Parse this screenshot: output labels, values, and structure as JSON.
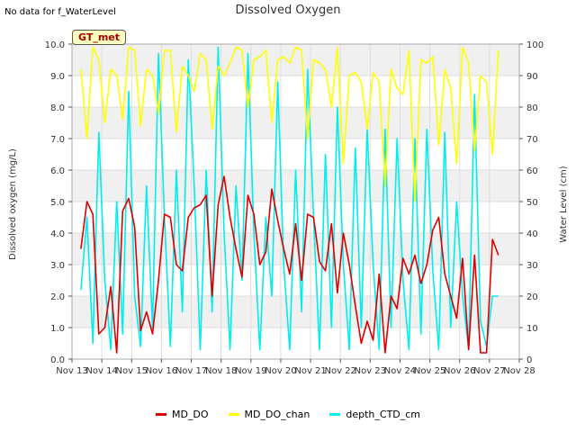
{
  "note": "No data for f_WaterLevel",
  "site_label": "GT_met",
  "chart_data": {
    "type": "line",
    "title": "Dissolved Oxygen",
    "ylabel": "Dissolved oxygen (mg/L)",
    "y2label": "Water Level (cm)",
    "ylim": [
      0,
      10
    ],
    "y2lim": [
      0,
      100
    ],
    "yticks": [
      "0.0",
      "1.0",
      "2.0",
      "3.0",
      "4.0",
      "5.0",
      "6.0",
      "7.0",
      "8.0",
      "9.0",
      "10.0"
    ],
    "y2ticks": [
      "0",
      "10",
      "20",
      "30",
      "40",
      "50",
      "60",
      "70",
      "80",
      "90",
      "100"
    ],
    "xlim": [
      13,
      28
    ],
    "xticks": [
      "Nov 13",
      "Nov 14",
      "Nov 15",
      "Nov 16",
      "Nov 17",
      "Nov 18",
      "Nov 19",
      "Nov 20",
      "Nov 21",
      "Nov 22",
      "Nov 23",
      "Nov 24",
      "Nov 25",
      "Nov 26",
      "Nov 27",
      "Nov 28"
    ],
    "grid": true,
    "legend_position": "bottom",
    "series": [
      {
        "name": "MD_DO",
        "color": "#dd0000",
        "axis": "left",
        "x": [
          13.3,
          13.5,
          13.7,
          13.9,
          14.1,
          14.3,
          14.5,
          14.7,
          14.9,
          15.1,
          15.3,
          15.5,
          15.7,
          15.9,
          16.1,
          16.3,
          16.5,
          16.7,
          16.9,
          17.1,
          17.3,
          17.5,
          17.7,
          17.9,
          18.1,
          18.3,
          18.5,
          18.7,
          18.9,
          19.1,
          19.3,
          19.5,
          19.7,
          19.9,
          20.1,
          20.3,
          20.5,
          20.7,
          20.9,
          21.1,
          21.3,
          21.5,
          21.7,
          21.9,
          22.1,
          22.3,
          22.5,
          22.7,
          22.9,
          23.1,
          23.3,
          23.5,
          23.7,
          23.9,
          24.1,
          24.3,
          24.5,
          24.7,
          24.9,
          25.1,
          25.3,
          25.5,
          25.7,
          25.9,
          26.1,
          26.3,
          26.5,
          26.7,
          26.9,
          27.1,
          27.3
        ],
        "y": [
          3.5,
          5.0,
          4.6,
          0.8,
          1.0,
          2.3,
          0.2,
          4.7,
          5.1,
          4.2,
          0.9,
          1.5,
          0.8,
          2.5,
          4.6,
          4.5,
          3.0,
          2.8,
          4.5,
          4.8,
          4.9,
          5.2,
          2.0,
          4.9,
          5.8,
          4.5,
          3.5,
          2.6,
          5.2,
          4.6,
          3.0,
          3.4,
          5.4,
          4.4,
          3.5,
          2.7,
          4.3,
          2.5,
          4.6,
          4.5,
          3.1,
          2.8,
          4.3,
          2.1,
          4.0,
          3.0,
          1.7,
          0.5,
          1.2,
          0.6,
          2.7,
          0.2,
          2.0,
          1.6,
          3.2,
          2.7,
          3.3,
          2.4,
          3.0,
          4.1,
          4.5,
          2.7,
          2.0,
          1.3,
          3.2,
          0.3,
          3.3,
          0.2,
          0.2,
          3.8,
          3.3
        ]
      },
      {
        "name": "MD_DO_chan",
        "color": "#ffff00",
        "axis": "right",
        "x": [
          13.3,
          13.5,
          13.7,
          13.9,
          14.1,
          14.3,
          14.5,
          14.7,
          14.9,
          15.1,
          15.3,
          15.5,
          15.7,
          15.9,
          16.1,
          16.3,
          16.5,
          16.7,
          16.9,
          17.1,
          17.3,
          17.5,
          17.7,
          17.9,
          18.1,
          18.3,
          18.5,
          18.7,
          18.9,
          19.1,
          19.3,
          19.5,
          19.7,
          19.9,
          20.1,
          20.3,
          20.5,
          20.7,
          20.9,
          21.1,
          21.3,
          21.5,
          21.7,
          21.9,
          22.1,
          22.3,
          22.5,
          22.7,
          22.9,
          23.1,
          23.3,
          23.5,
          23.7,
          23.9,
          24.1,
          24.3,
          24.5,
          24.7,
          24.9,
          25.1,
          25.3,
          25.5,
          25.7,
          25.9,
          26.1,
          26.3,
          26.5,
          26.7,
          26.9,
          27.1,
          27.3
        ],
        "y": [
          92,
          70,
          99,
          95,
          75,
          92,
          90,
          76,
          99,
          98,
          74,
          92,
          90,
          78,
          98,
          98,
          72,
          93,
          90,
          85,
          97,
          95,
          73,
          93,
          90,
          94,
          99,
          98,
          80,
          95,
          96,
          98,
          75,
          95,
          96,
          94,
          99,
          98,
          70,
          95,
          94,
          92,
          80,
          99,
          62,
          90,
          91,
          88,
          73,
          91,
          88,
          55,
          92,
          86,
          84,
          98,
          50,
          95,
          94,
          96,
          68,
          92,
          86,
          62,
          99,
          94,
          66,
          90,
          88,
          65,
          98
        ]
      },
      {
        "name": "depth_CTD_cm",
        "color": "#00eeee",
        "axis": "right",
        "x": [
          13.3,
          13.5,
          13.7,
          13.9,
          14.1,
          14.3,
          14.5,
          14.7,
          14.9,
          15.1,
          15.3,
          15.5,
          15.7,
          15.9,
          16.1,
          16.3,
          16.5,
          16.7,
          16.9,
          17.1,
          17.3,
          17.5,
          17.7,
          17.9,
          18.1,
          18.3,
          18.5,
          18.7,
          18.9,
          19.1,
          19.3,
          19.5,
          19.7,
          19.9,
          20.1,
          20.3,
          20.5,
          20.7,
          20.9,
          21.1,
          21.3,
          21.5,
          21.7,
          21.9,
          22.1,
          22.3,
          22.5,
          22.7,
          22.9,
          23.1,
          23.3,
          23.5,
          23.7,
          23.9,
          24.1,
          24.3,
          24.5,
          24.7,
          24.9,
          25.1,
          25.3,
          25.5,
          25.7,
          25.9,
          26.1,
          26.3,
          26.5,
          26.7,
          26.9,
          27.1,
          27.3
        ],
        "y": [
          22,
          45,
          5,
          72,
          25,
          3,
          50,
          8,
          85,
          20,
          4,
          55,
          10,
          97,
          45,
          4,
          60,
          15,
          95,
          55,
          3,
          60,
          15,
          99,
          40,
          3,
          55,
          25,
          97,
          40,
          3,
          45,
          20,
          88,
          30,
          3,
          60,
          15,
          92,
          45,
          3,
          65,
          10,
          80,
          30,
          3,
          67,
          10,
          73,
          30,
          3,
          73,
          10,
          70,
          25,
          3,
          70,
          8,
          73,
          28,
          3,
          72,
          10,
          50,
          20,
          3,
          84,
          12,
          4,
          20,
          20
        ]
      }
    ]
  }
}
